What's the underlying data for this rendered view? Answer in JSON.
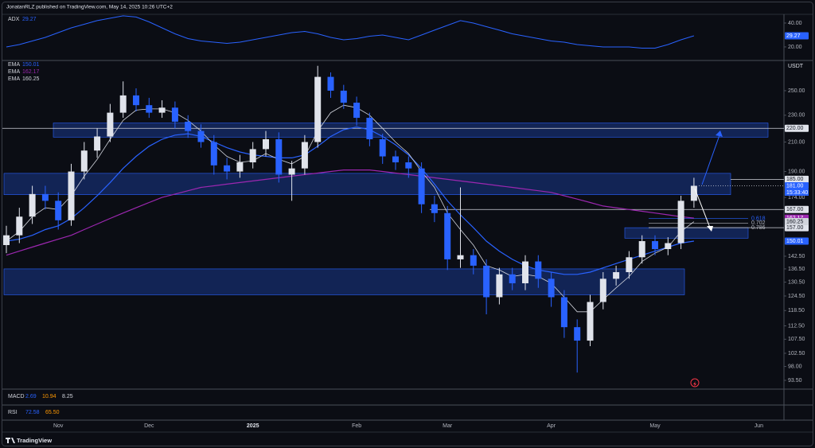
{
  "chart_data": {
    "type": "candlestick",
    "header": "JonatanRLZ published on TradingView.com, May 14, 2025 10:26 UTC+2",
    "footer": "TradingView",
    "currency": "USDT",
    "log_scale": true,
    "categories": [
      null,
      null,
      null,
      null,
      "Nov",
      null,
      null,
      null,
      null,
      null,
      null,
      "Dec",
      null,
      null,
      null,
      null,
      null,
      null,
      null,
      "2025",
      null,
      null,
      null,
      null,
      null,
      null,
      null,
      "Feb",
      null,
      null,
      null,
      null,
      null,
      null,
      "Mar",
      null,
      null,
      null,
      null,
      null,
      null,
      null,
      "Apr",
      null,
      null,
      null,
      null,
      null,
      null,
      null,
      "May",
      null,
      null,
      null,
      null,
      null,
      null,
      null,
      "Jun"
    ],
    "open": [
      148,
      153,
      163,
      176,
      172,
      161,
      190,
      204,
      214,
      232,
      246,
      238,
      232,
      236,
      225,
      218,
      210,
      194,
      190,
      196,
      205,
      212,
      188,
      192,
      210,
      262,
      250,
      240,
      228,
      212,
      200,
      196,
      192,
      170,
      165,
      141,
      143,
      138,
      124,
      134,
      130,
      140,
      132,
      124,
      112,
      107,
      122,
      132,
      135,
      142,
      150,
      146,
      149,
      172,
      null,
      null,
      null,
      null,
      null
    ],
    "high": [
      158,
      168,
      181,
      181,
      177,
      195,
      210,
      220,
      239,
      258,
      252,
      244,
      242,
      241,
      230,
      223,
      215,
      199,
      201,
      210,
      218,
      217,
      197,
      215,
      272,
      266,
      255,
      245,
      232,
      216,
      204,
      200,
      196,
      175,
      169,
      180,
      146,
      141,
      137,
      137,
      143,
      143,
      135,
      127,
      115,
      125,
      135,
      138,
      145,
      153,
      153,
      152,
      175,
      186,
      null,
      null,
      null,
      null,
      null
    ],
    "low": [
      144,
      149,
      159,
      167,
      156,
      158,
      185,
      199,
      210,
      228,
      233,
      228,
      228,
      220,
      213,
      206,
      188,
      185,
      186,
      192,
      200,
      183,
      172,
      188,
      206,
      244,
      235,
      222,
      207,
      195,
      191,
      186,
      165,
      160,
      136,
      137,
      134,
      117,
      121,
      127,
      127,
      128,
      120,
      108,
      96,
      105,
      119,
      129,
      132,
      139,
      143,
      143,
      146,
      168,
      null,
      null,
      null,
      null,
      null
    ],
    "close": [
      153,
      163,
      176,
      172,
      161,
      190,
      204,
      214,
      232,
      246,
      238,
      232,
      236,
      225,
      218,
      210,
      194,
      190,
      196,
      205,
      212,
      188,
      192,
      210,
      262,
      250,
      240,
      228,
      212,
      200,
      196,
      192,
      170,
      165,
      141,
      143,
      138,
      124,
      134,
      130,
      140,
      132,
      124,
      112,
      107,
      122,
      132,
      135,
      142,
      150,
      146,
      149,
      172,
      181,
      null,
      null,
      null,
      null,
      null
    ],
    "up_color": "#e0e3eb",
    "down_color": "#2962ff",
    "ylim": [
      91,
      275.5
    ],
    "yticks": [
      {
        "value": 250,
        "label": "250.00"
      },
      {
        "value": 230,
        "label": "230.00"
      },
      {
        "value": 210,
        "label": "210.00"
      },
      {
        "value": 190,
        "label": "190.00"
      },
      {
        "value": 174,
        "label": "174.00"
      },
      {
        "value": 142.5,
        "label": "142.50"
      },
      {
        "value": 136.5,
        "label": "136.50"
      },
      {
        "value": 130.5,
        "label": "130.50"
      },
      {
        "value": 124.5,
        "label": "124.50"
      },
      {
        "value": 118.5,
        "label": "118.50"
      },
      {
        "value": 112.5,
        "label": "112.50"
      },
      {
        "value": 107.5,
        "label": "107.50"
      },
      {
        "value": 102.5,
        "label": "102.50"
      },
      {
        "value": 98,
        "label": "98.00"
      },
      {
        "value": 93.5,
        "label": "93.50"
      }
    ],
    "series": [
      {
        "name": "EMA",
        "color": "#2962ff",
        "values": [
          150,
          151,
          153,
          156,
          158,
          162,
          168,
          175,
          183,
          192,
          200,
          207,
          212,
          215,
          216,
          214,
          210,
          206,
          203,
          201,
          200,
          199,
          199,
          201,
          207,
          214,
          219,
          221,
          219,
          214,
          208,
          201,
          192,
          182,
          172,
          164,
          157,
          150,
          145,
          141,
          138,
          136,
          135,
          134,
          134,
          135,
          137,
          139,
          141,
          143,
          145,
          147,
          149,
          150.01,
          null,
          null,
          null,
          null,
          null
        ]
      },
      {
        "name": "EMA",
        "color": "#9c27b0",
        "values": [
          143,
          145,
          147,
          149,
          151,
          153,
          156,
          159,
          162,
          165,
          168,
          171,
          174,
          176,
          178,
          180,
          181,
          182,
          183,
          184,
          185,
          186,
          187,
          188,
          189,
          190,
          191,
          191,
          191,
          190,
          189,
          188,
          187,
          186,
          185,
          184,
          183,
          182,
          181,
          180,
          179,
          178,
          177,
          175,
          173,
          171,
          169,
          168,
          167,
          166,
          165,
          164,
          163,
          162.17,
          null,
          null,
          null,
          null,
          null
        ]
      },
      {
        "name": "EMA",
        "color": "#d1d4dc",
        "values": [
          150,
          155,
          163,
          168,
          167,
          175,
          187,
          198,
          212,
          226,
          234,
          235,
          235,
          232,
          226,
          218,
          208,
          200,
          196,
          197,
          202,
          198,
          195,
          200,
          218,
          232,
          238,
          236,
          230,
          220,
          210,
          202,
          190,
          180,
          165,
          156,
          148,
          138,
          136,
          133,
          134,
          133,
          130,
          124,
          118,
          118,
          123,
          128,
          133,
          140,
          144,
          147,
          155,
          160.25,
          null,
          null,
          null,
          null,
          null
        ]
      }
    ],
    "price_labels": [
      {
        "value": 220,
        "label": "220.00",
        "color": "#e0e3eb"
      },
      {
        "value": 185,
        "label": "185.00",
        "color": "#e0e3eb"
      },
      {
        "value": 181,
        "label": "181.00",
        "color": "#2962ff"
      },
      {
        "value": 167,
        "label": "167.00",
        "color": "#e0e3eb"
      },
      {
        "value": 157,
        "label": "157.00",
        "color": "#e0e3eb"
      }
    ],
    "countdown": "15:33:40",
    "zones": [
      {
        "top": 224,
        "bottom": 213.5
      },
      {
        "top": 188.8,
        "bottom": 175.6
      },
      {
        "top": 157,
        "bottom": 151.5
      },
      {
        "top": 136.5,
        "bottom": 125
      }
    ],
    "fib_levels": [
      {
        "label": "0.618",
        "value": 162,
        "color": "#2962ff"
      },
      {
        "label": "0.702",
        "value": 159.5,
        "color": "#b2b5be"
      },
      {
        "label": "0.786",
        "value": 157,
        "color": "#b2b5be"
      }
    ],
    "adx": {
      "name": "ADX",
      "color": "#2962ff",
      "values": [
        20,
        22,
        25,
        28,
        32,
        36,
        39,
        42,
        44,
        46,
        45,
        41,
        36,
        31,
        27,
        25,
        24,
        23,
        24,
        26,
        28,
        30,
        32,
        33,
        31,
        28,
        26,
        27,
        29,
        30,
        28,
        26,
        30,
        34,
        38,
        42,
        40,
        37,
        34,
        31,
        29,
        27,
        25,
        24,
        22,
        21,
        20,
        20,
        20,
        19,
        19,
        22,
        26,
        29.27,
        null,
        null,
        null,
        null,
        null
      ],
      "ylim": [
        9.3,
        47.3
      ],
      "yticks": [
        {
          "value": 40,
          "label": "40.00"
        },
        {
          "value": 20,
          "label": "20.00"
        }
      ]
    },
    "indicators": [
      {
        "name": "MACD",
        "values": [
          2.69,
          10.94,
          8.25
        ]
      },
      {
        "name": "RSI",
        "values": [
          72.58,
          65.5
        ],
        "value_labels": [
          "72.58",
          "65.50"
        ]
      }
    ]
  }
}
